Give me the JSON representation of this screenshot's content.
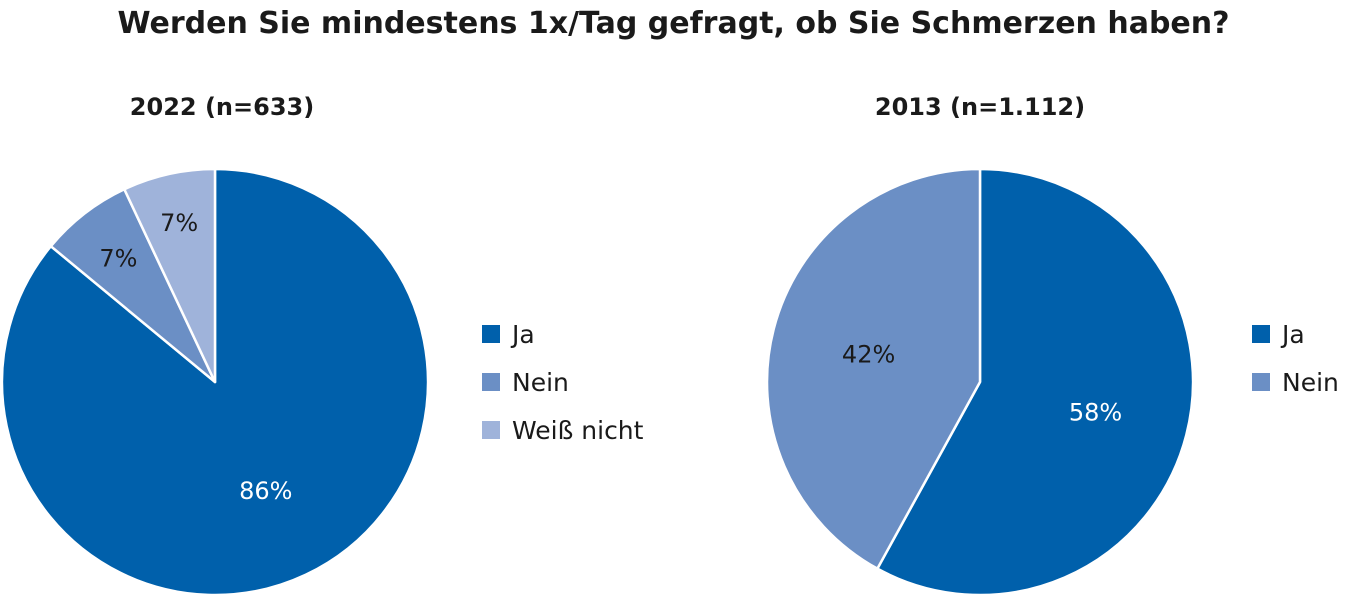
{
  "title": "Werden Sie mindestens 1x/Tag gefragt, ob Sie Schmerzen haben?",
  "colors": {
    "ja": "#0060ab",
    "nein": "#6b8fc5",
    "weiss_nicht": "#9fb3da",
    "background": "#ffffff"
  },
  "chart_data": [
    {
      "type": "pie",
      "title": "2022 (n=633)",
      "categories": [
        "Ja",
        "Nein",
        "Weiß nicht"
      ],
      "values": [
        86,
        7,
        7
      ],
      "labels": [
        "86%",
        "7%",
        "7%"
      ],
      "colors": [
        "#0060ab",
        "#6b8fc5",
        "#9fb3da"
      ],
      "start_angle_deg": 0,
      "direction": "clockwise",
      "legend": [
        "Ja",
        "Nein",
        "Weiß nicht"
      ],
      "legend_position": "right"
    },
    {
      "type": "pie",
      "title": "2013 (n=1.112)",
      "categories": [
        "Ja",
        "Nein"
      ],
      "values": [
        58,
        42
      ],
      "labels": [
        "58%",
        "42%"
      ],
      "colors": [
        "#0060ab",
        "#6b8fc5"
      ],
      "start_angle_deg": 0,
      "direction": "clockwise",
      "legend": [
        "Ja",
        "Nein"
      ],
      "legend_position": "right"
    }
  ]
}
